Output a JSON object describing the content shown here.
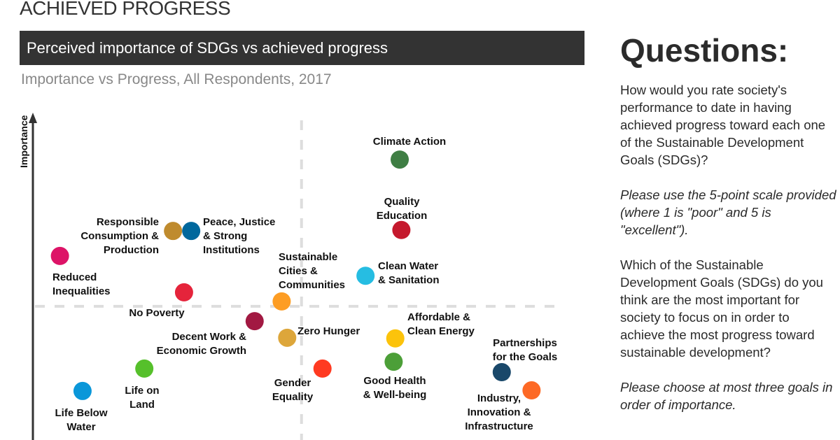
{
  "page": {
    "section_title": "ACHIEVED PROGRESS",
    "banner": "Perceived importance of SDGs vs achieved progress",
    "subtitle": "Importance vs Progress, All Respondents, 2017"
  },
  "questions": {
    "heading": "Questions:",
    "q1": "How would you rate society's performance to date in having achieved progress toward each one of the Sustainable Development Goals (SDGs)?",
    "q1_note": "Please use the 5-point scale provided (where 1 is \"poor\" and 5 is \"excellent\").",
    "q2": "Which of the Sustainable Development Goals (SDGs) do you think are the most important for society to focus on in order to achieve the most progress toward sustainable development?",
    "q2_note": "Please choose at most three goals in order of importance."
  },
  "chart_data": {
    "type": "scatter",
    "title": "Perceived importance of SDGs vs achieved progress",
    "subtitle": "Importance vs Progress, All Respondents, 2017",
    "xlabel": "",
    "ylabel": "Importance",
    "note": "no numeric scale printed; values are relative positions on a 0-10 scale",
    "xlim": [
      0,
      10
    ],
    "ylim": [
      0,
      10
    ],
    "grid": false,
    "quadrant_dividers": {
      "x": 4.87,
      "y": 4.12,
      "style": "dashed",
      "color": "#dddddd"
    },
    "points": [
      {
        "label": "Climate Action",
        "x": 6.65,
        "y": 8.64,
        "color": "#3f7e44"
      },
      {
        "label": "Quality\nEducation",
        "x": 6.68,
        "y": 6.47,
        "color": "#c5192d"
      },
      {
        "label": "Responsible\nConsumption &\nProduction",
        "x": 2.54,
        "y": 6.44,
        "color": "#bf8b2e"
      },
      {
        "label": "Peace, Justice\n& Strong\nInstitutions",
        "x": 2.87,
        "y": 6.44,
        "color": "#00689d"
      },
      {
        "label": "Reduced\nInequalities",
        "x": 0.49,
        "y": 5.67,
        "color": "#dd1367"
      },
      {
        "label": "Clean Water\n& Sanitation",
        "x": 6.03,
        "y": 5.06,
        "color": "#26bde2"
      },
      {
        "label": "No Poverty",
        "x": 2.74,
        "y": 4.55,
        "color": "#e5243b"
      },
      {
        "label": "Sustainable\nCities &\nCommunities",
        "x": 4.51,
        "y": 4.27,
        "color": "#fd9d24"
      },
      {
        "label": "Decent Work &\nEconomic Growth",
        "x": 4.02,
        "y": 3.66,
        "color": "#a21942"
      },
      {
        "label": "Zero Hunger",
        "x": 4.61,
        "y": 3.15,
        "color": "#dda63a"
      },
      {
        "label": "Affordable &\nClean Energy",
        "x": 6.57,
        "y": 3.13,
        "color": "#fcc30b"
      },
      {
        "label": "Life on\nLand",
        "x": 2.02,
        "y": 2.2,
        "color": "#56c02b"
      },
      {
        "label": "Good Health\n& Well-being",
        "x": 6.54,
        "y": 2.41,
        "color": "#4c9f38"
      },
      {
        "label": "Gender\nEquality",
        "x": 5.25,
        "y": 2.2,
        "color": "#ff3a21"
      },
      {
        "label": "Partnerships\nfor the Goals",
        "x": 8.5,
        "y": 2.09,
        "color": "#19486a"
      },
      {
        "label": "Industry,\nInnovation &\nInfrastructure",
        "x": 9.04,
        "y": 1.53,
        "color": "#fd6925"
      },
      {
        "label": "Life Below\nWater",
        "x": 0.9,
        "y": 1.51,
        "color": "#0a97d9"
      }
    ]
  }
}
